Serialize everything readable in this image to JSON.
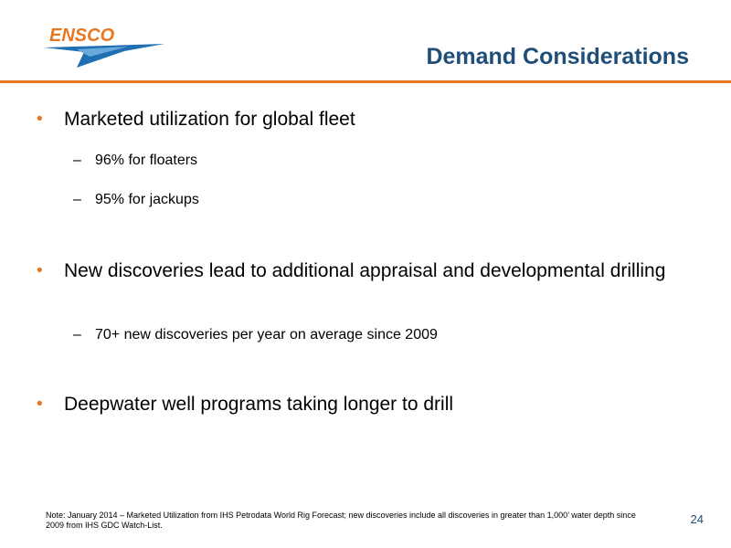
{
  "header": {
    "logo_text": "ENSCO",
    "title": "Demand Considerations"
  },
  "colors": {
    "accent": "#e87722",
    "title": "#1f4e79"
  },
  "bullets": [
    {
      "text": "Marketed utilization for global fleet",
      "subs": [
        "96% for floaters",
        "95% for jackups"
      ]
    },
    {
      "text": "New discoveries lead to additional appraisal and developmental drilling",
      "subs": [
        "70+ new discoveries per year on average since 2009"
      ]
    },
    {
      "text": "Deepwater well programs taking longer to drill",
      "subs": []
    }
  ],
  "bullet_marker": "•",
  "sub_marker": "–",
  "footer": {
    "note": "Note: January 2014 – Marketed Utilization from IHS Petrodata World Rig Forecast; new discoveries include all discoveries in greater than 1,000’ water depth since 2009 from IHS GDC Watch-List.",
    "page_number": "24"
  }
}
